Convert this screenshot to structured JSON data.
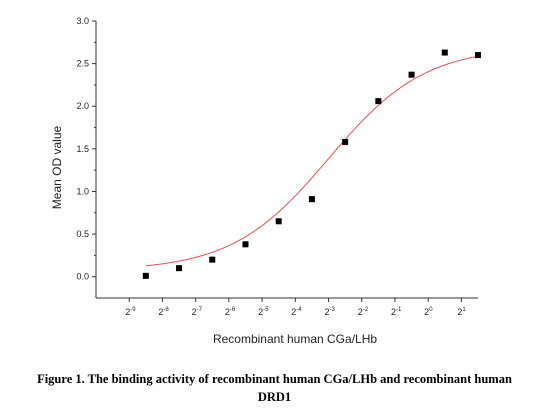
{
  "chart_data": {
    "type": "scatter",
    "xlabel": "Recombinant human CGa/LHb",
    "ylabel": "Mean OD value",
    "x_scale": "log2",
    "x_ticks": [
      {
        "base": "2",
        "exp": "-9",
        "value": -9
      },
      {
        "base": "2",
        "exp": "-8",
        "value": -8
      },
      {
        "base": "2",
        "exp": "-7",
        "value": -7
      },
      {
        "base": "2",
        "exp": "-6",
        "value": -6
      },
      {
        "base": "2",
        "exp": "-5",
        "value": -5
      },
      {
        "base": "2",
        "exp": "-4",
        "value": -4
      },
      {
        "base": "2",
        "exp": "-3",
        "value": -3
      },
      {
        "base": "2",
        "exp": "-2",
        "value": -2
      },
      {
        "base": "2",
        "exp": "-1",
        "value": -1
      },
      {
        "base": "2",
        "exp": "0",
        "value": 0
      },
      {
        "base": "2",
        "exp": "1",
        "value": 1
      }
    ],
    "xlim": [
      -10,
      1.5
    ],
    "y_ticks": [
      "0.0",
      "0.5",
      "1.0",
      "1.5",
      "2.0",
      "2.5",
      "3.0"
    ],
    "ylim": [
      -0.25,
      3.0
    ],
    "grid": false,
    "series": [
      {
        "marker": "square",
        "color": "#000000",
        "x": [
          -8.5,
          -7.5,
          -6.5,
          -5.5,
          -4.5,
          -3.5,
          -2.5,
          -1.5,
          -0.5,
          0.5,
          1.5
        ],
        "y": [
          0.01,
          0.1,
          0.2,
          0.38,
          0.65,
          0.91,
          1.58,
          2.06,
          2.37,
          2.63,
          2.6
        ]
      }
    ],
    "fit_curve": {
      "type": "sigmoid",
      "color": "#e05050",
      "x_range": [
        -8.5,
        1.5
      ]
    }
  },
  "caption": {
    "line1": "Figure 1. The binding activity of recombinant human CGa/LHb and recombinant human",
    "line2": "DRD1"
  }
}
